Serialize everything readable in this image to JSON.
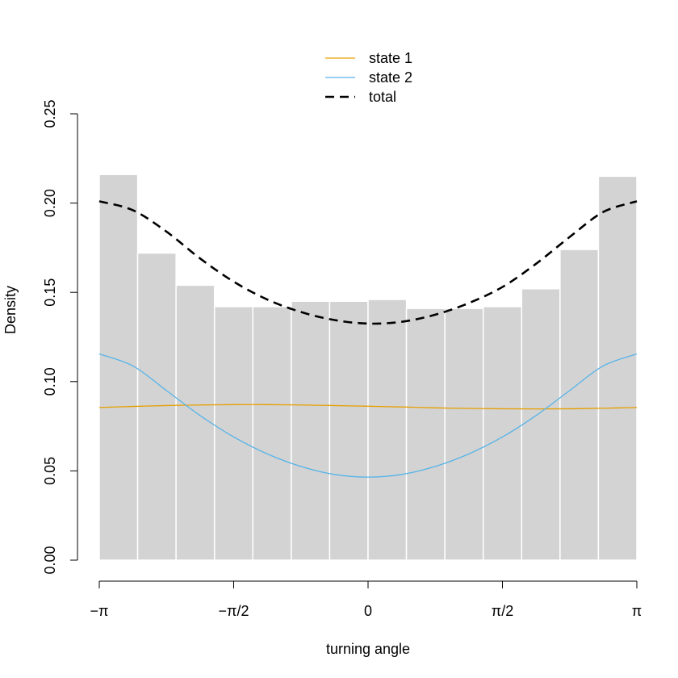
{
  "chart_data": {
    "type": "histogram",
    "xlabel": "turning angle",
    "ylabel": "Density",
    "xlim": [
      -3.14159265,
      3.14159265
    ],
    "ylim": [
      0,
      0.25
    ],
    "x_ticks": [
      {
        "value": -3.14159265,
        "label": "−π"
      },
      {
        "value": -1.57079633,
        "label": "−π/2"
      },
      {
        "value": 0,
        "label": "0"
      },
      {
        "value": 1.57079633,
        "label": "π/2"
      },
      {
        "value": 3.14159265,
        "label": "π"
      }
    ],
    "y_ticks": [
      {
        "value": 0,
        "label": "0.00"
      },
      {
        "value": 0.05,
        "label": "0.05"
      },
      {
        "value": 0.1,
        "label": "0.10"
      },
      {
        "value": 0.15,
        "label": "0.15"
      },
      {
        "value": 0.2,
        "label": "0.20"
      },
      {
        "value": 0.25,
        "label": "0.25"
      }
    ],
    "bins": {
      "edges": [
        -3.14159265,
        -2.6927937,
        -2.24399475,
        -1.7951958,
        -1.34639685,
        -0.8975979,
        -0.44879895,
        0,
        0.44879895,
        0.8975979,
        1.34639685,
        1.7951958,
        2.24399475,
        2.6927937,
        3.14159265
      ],
      "density": [
        0.216,
        0.172,
        0.154,
        0.142,
        0.142,
        0.145,
        0.145,
        0.146,
        0.141,
        0.141,
        0.142,
        0.152,
        0.174,
        0.215
      ],
      "color": "#d3d3d3"
    },
    "series": [
      {
        "name": "state 1",
        "color": "#e69f00",
        "style": "solid",
        "x": [
          -3.1416,
          -2.7489,
          -2.3562,
          -1.9635,
          -1.5708,
          -1.1781,
          -0.7854,
          -0.3927,
          0,
          0.3927,
          0.7854,
          1.1781,
          1.5708,
          1.9635,
          2.3562,
          2.7489,
          3.1416
        ],
        "y": [
          0.0855,
          0.0861,
          0.0866,
          0.0869,
          0.0871,
          0.0871,
          0.0869,
          0.0866,
          0.0862,
          0.0858,
          0.0853,
          0.085,
          0.0848,
          0.0847,
          0.0848,
          0.0851,
          0.0855
        ]
      },
      {
        "name": "state 2",
        "color": "#56b4e9",
        "style": "solid",
        "x": [
          -3.1416,
          -2.7489,
          -2.3562,
          -1.9635,
          -1.5708,
          -1.1781,
          -0.7854,
          -0.3927,
          0,
          0.3927,
          0.7854,
          1.1781,
          1.5708,
          1.9635,
          2.3562,
          2.7489,
          3.1416
        ],
        "y": [
          0.1155,
          0.1088,
          0.095,
          0.081,
          0.069,
          0.0595,
          0.0525,
          0.048,
          0.0465,
          0.048,
          0.0525,
          0.0595,
          0.069,
          0.081,
          0.095,
          0.1088,
          0.1155
        ]
      },
      {
        "name": "total",
        "color": "#000000",
        "style": "dashed",
        "x": [
          -3.1416,
          -2.7489,
          -2.3562,
          -1.9635,
          -1.5708,
          -1.1781,
          -0.7854,
          -0.3927,
          0,
          0.3927,
          0.7854,
          1.1781,
          1.5708,
          1.9635,
          2.3562,
          2.7489,
          3.1416
        ],
        "y": [
          0.201,
          0.196,
          0.184,
          0.169,
          0.156,
          0.146,
          0.139,
          0.1345,
          0.1325,
          0.1335,
          0.1375,
          0.144,
          0.153,
          0.166,
          0.181,
          0.195,
          0.201
        ]
      }
    ],
    "legend": {
      "position": "top-center",
      "items": [
        "state 1",
        "state 2",
        "total"
      ]
    },
    "grid": false
  }
}
